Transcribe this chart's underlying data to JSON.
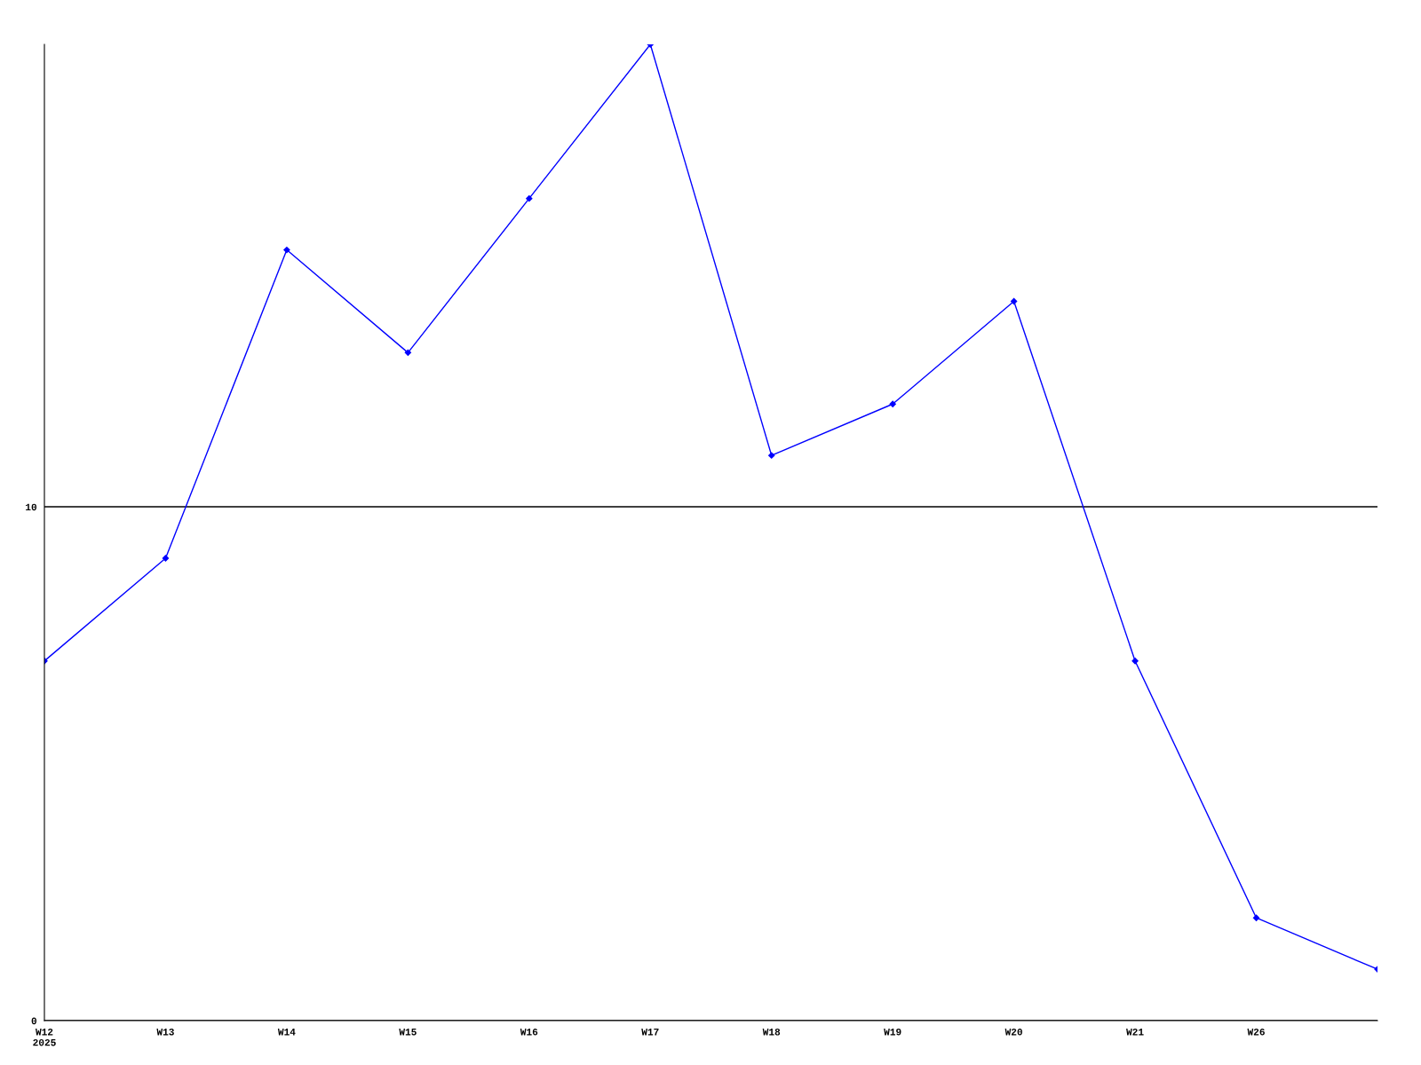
{
  "chart_data": {
    "type": "line",
    "categories": [
      "W12\n2025",
      "W13",
      "W14",
      "W15",
      "W16",
      "W17",
      "W18",
      "W19",
      "W20",
      "W21",
      "W26",
      null
    ],
    "series": [
      {
        "color": "#0000ff",
        "values": [
          7,
          9,
          15,
          13,
          16,
          19,
          11,
          12,
          14,
          7,
          2,
          1
        ]
      }
    ],
    "ylim": [
      0,
      19
    ],
    "yticks": [
      0,
      10
    ],
    "grid": "y",
    "marker": "diamond",
    "line_style": "solid"
  }
}
